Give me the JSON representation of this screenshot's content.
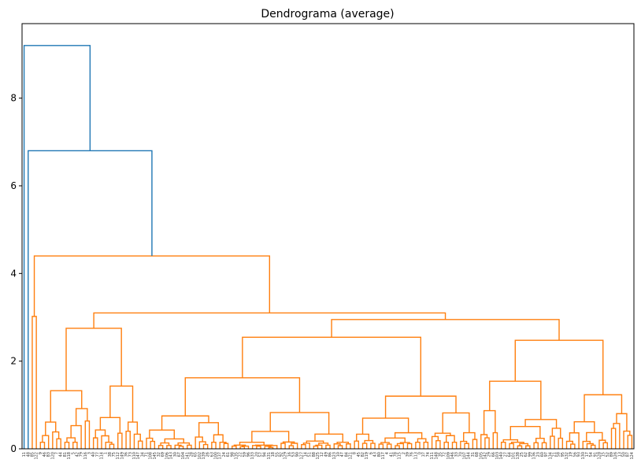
{
  "chart_data": {
    "type": "dendrogram",
    "title": "Dendrograma (average)",
    "xlabel": "",
    "ylabel": "",
    "ylim": [
      0,
      9.7
    ],
    "yticks": [
      0,
      2,
      4,
      6,
      8
    ],
    "grid": false,
    "legend": "none",
    "colors": {
      "above_threshold": "#1f77b4",
      "cluster": "#ff7f0e"
    },
    "leaf_count": 150,
    "root_merges": [
      {
        "height": 9.2,
        "description": "root"
      },
      {
        "height": 6.8
      },
      {
        "height": 4.4
      }
    ],
    "major_merge_heights": [
      9.2,
      6.8,
      4.4,
      3.1,
      3.02,
      2.95,
      2.82,
      2.75,
      2.68,
      2.48,
      2.27,
      2.17,
      2.04,
      2.0,
      1.99,
      1.9,
      1.62,
      1.6,
      1.42,
      1.3,
      1.15,
      1.05,
      0.9,
      0.8,
      0.6,
      0.4,
      0.2
    ]
  }
}
